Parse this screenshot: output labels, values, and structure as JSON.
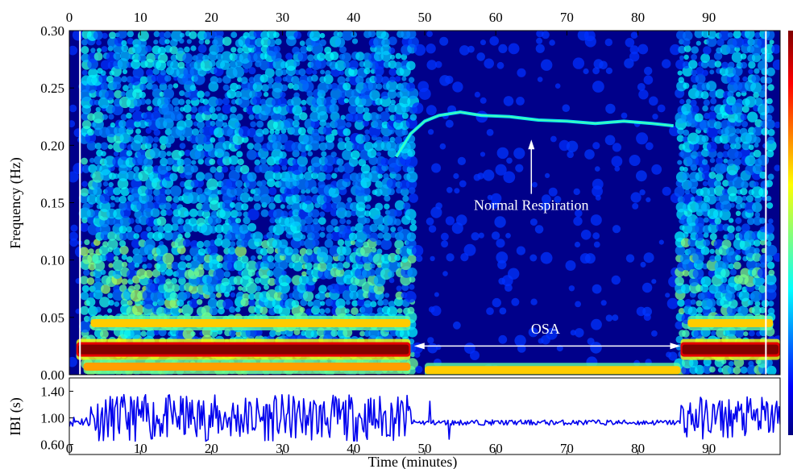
{
  "chart_data": [
    {
      "type": "heatmap",
      "panel": "spectrogram",
      "title": "",
      "xlabel": "",
      "ylabel": "Frequency (Hz)",
      "xlim": [
        0,
        100
      ],
      "ylim": [
        0,
        0.3
      ],
      "x_ticks": [
        0,
        10,
        20,
        30,
        40,
        50,
        60,
        70,
        80,
        90
      ],
      "y_ticks": [
        "0.00",
        "0.05",
        "0.10",
        "0.15",
        "0.20",
        "0.25",
        "0.30"
      ],
      "colormap": "jet",
      "colorbar": true,
      "grid": false,
      "vertical_markers": [
        1.5,
        98
      ],
      "bands": [
        {
          "name": "",
          "freq": 0.022,
          "x_start": 1,
          "x_end": 48,
          "intensity": 1.0
        },
        {
          "name": "",
          "freq": 0.045,
          "x_start": 3,
          "x_end": 48,
          "intensity": 0.75
        },
        {
          "name": "",
          "freq": 0.007,
          "x_start": 2,
          "x_end": 48,
          "intensity": 0.8
        },
        {
          "name": "",
          "freq": 0.004,
          "x_start": 50,
          "x_end": 86,
          "intensity": 0.75
        },
        {
          "name": "",
          "freq": 0.022,
          "x_start": 86,
          "x_end": 100,
          "intensity": 1.0
        },
        {
          "name": "",
          "freq": 0.045,
          "x_start": 87,
          "x_end": 99,
          "intensity": 0.75
        }
      ],
      "respiration_trace": {
        "x": [
          46,
          48,
          50,
          52,
          55,
          58,
          62,
          66,
          70,
          74,
          78,
          82,
          85
        ],
        "y": [
          0.19,
          0.21,
          0.221,
          0.226,
          0.229,
          0.226,
          0.225,
          0.222,
          0.221,
          0.219,
          0.221,
          0.219,
          0.217
        ]
      },
      "annotations": [
        {
          "text": "Normal Respiration",
          "x": 65,
          "y": 0.145,
          "arrow_to": {
            "x": 65,
            "y": 0.205
          }
        },
        {
          "text": "OSA",
          "x": 67,
          "y": 0.04,
          "arrow_from_x": 48.5,
          "arrow_to_x": 86,
          "arrow_y": 0.025
        }
      ]
    },
    {
      "type": "line",
      "panel": "ibi",
      "title": "",
      "xlabel": "Time (minutes)",
      "ylabel": "IBI (s)",
      "xlim": [
        0,
        100
      ],
      "ylim": [
        0.45,
        1.6
      ],
      "x_ticks": [
        0,
        10,
        20,
        30,
        40,
        50,
        60,
        70,
        80,
        90
      ],
      "y_ticks": [
        "0.60",
        "1.00",
        "1.40"
      ],
      "grid": false,
      "line_color": "#0000ee",
      "segments": [
        {
          "x_start": 0,
          "x_end": 3,
          "mean": 0.95,
          "amplitude": 0.08
        },
        {
          "x_start": 3,
          "x_end": 48,
          "mean": 1.0,
          "amplitude": 0.35
        },
        {
          "x_start": 48,
          "x_end": 86,
          "mean": 0.93,
          "amplitude": 0.04
        },
        {
          "x_start": 86,
          "x_end": 100,
          "mean": 1.0,
          "amplitude": 0.32
        }
      ],
      "spikes": [
        {
          "x": 50.7,
          "y": 1.25
        },
        {
          "x": 53.4,
          "y": 0.68
        }
      ]
    }
  ]
}
